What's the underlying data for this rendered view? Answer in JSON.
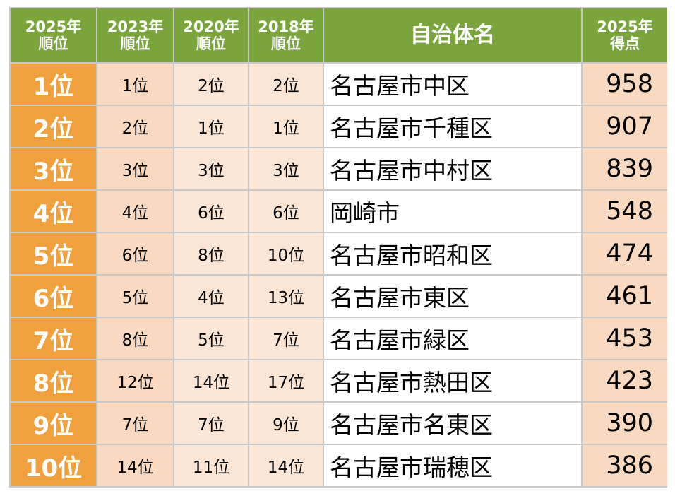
{
  "headers": {
    "rank2025": [
      "2025年",
      "順位"
    ],
    "rank2023": [
      "2023年",
      "順位"
    ],
    "rank2020": [
      "2020年",
      "順位"
    ],
    "rank2018": [
      "2018年",
      "順位"
    ],
    "municipality": "自治体名",
    "score2025": [
      "2025年",
      "得点"
    ]
  },
  "rows": [
    {
      "rank": "1位",
      "r2023": "1位",
      "r2020": "2位",
      "r2018": "2位",
      "name": "名古屋市中区",
      "score": "958"
    },
    {
      "rank": "2位",
      "r2023": "2位",
      "r2020": "1位",
      "r2018": "1位",
      "name": "名古屋市千種区",
      "score": "907"
    },
    {
      "rank": "3位",
      "r2023": "3位",
      "r2020": "3位",
      "r2018": "3位",
      "name": "名古屋市中村区",
      "score": "839"
    },
    {
      "rank": "4位",
      "r2023": "4位",
      "r2020": "6位",
      "r2018": "6位",
      "name": "岡崎市",
      "score": "548"
    },
    {
      "rank": "5位",
      "r2023": "6位",
      "r2020": "8位",
      "r2018": "10位",
      "name": "名古屋市昭和区",
      "score": "474"
    },
    {
      "rank": "6位",
      "r2023": "5位",
      "r2020": "4位",
      "r2018": "13位",
      "name": "名古屋市東区",
      "score": "461"
    },
    {
      "rank": "7位",
      "r2023": "8位",
      "r2020": "5位",
      "r2018": "7位",
      "name": "名古屋市緑区",
      "score": "453"
    },
    {
      "rank": "8位",
      "r2023": "12位",
      "r2020": "14位",
      "r2018": "17位",
      "name": "名古屋市熱田区",
      "score": "423"
    },
    {
      "rank": "9位",
      "r2023": "7位",
      "r2020": "7位",
      "r2018": "9位",
      "name": "名古屋市名東区",
      "score": "390"
    },
    {
      "rank": "10位",
      "r2023": "14位",
      "r2020": "11位",
      "r2018": "14位",
      "name": "名古屋市瑞穂区",
      "score": "386"
    }
  ],
  "colors": {
    "header_bg": "#7aa53c",
    "rank_bg": "#f0a03c",
    "prev_rank_bg": "#f9d9bf",
    "score_bg": "#f9d9bf",
    "grid_line": "#c8c8c8"
  }
}
